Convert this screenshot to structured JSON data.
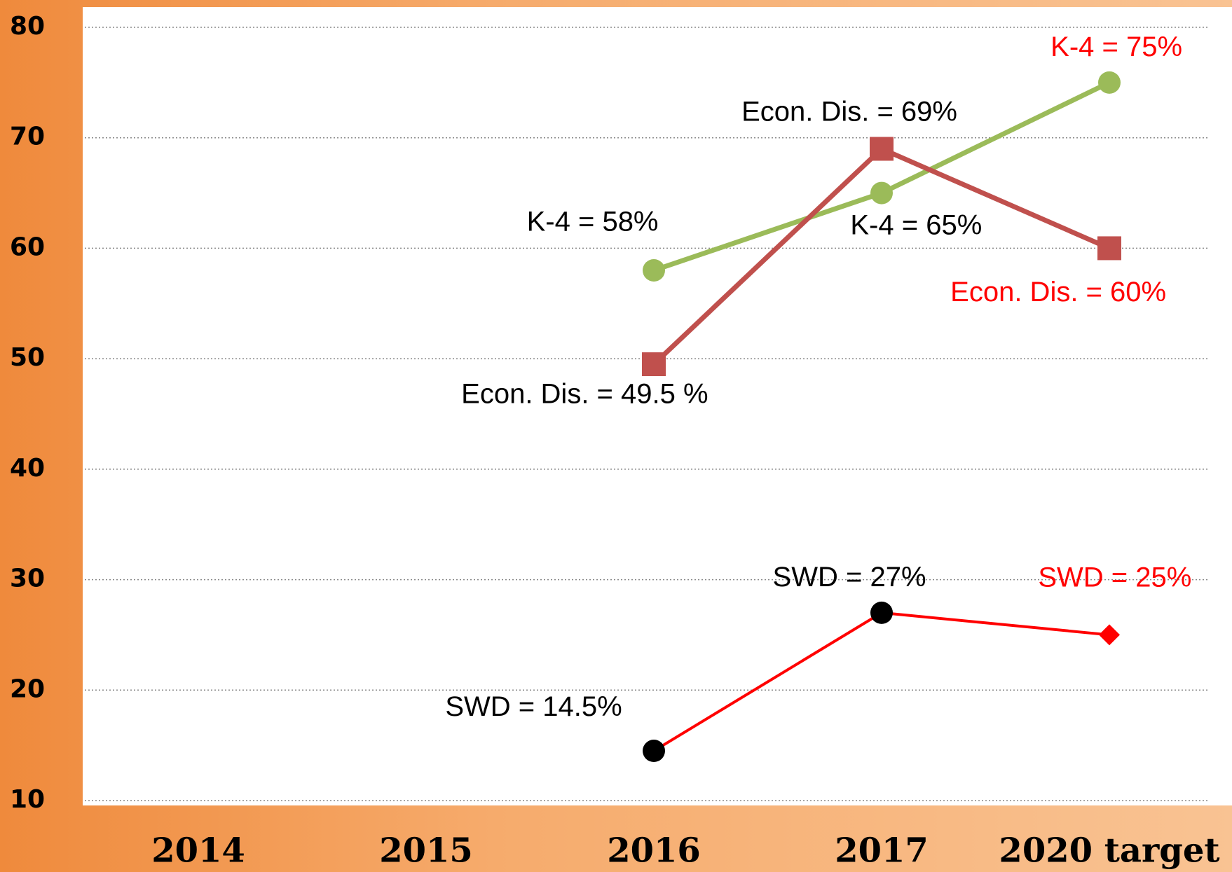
{
  "chart_data": {
    "type": "line",
    "categories": [
      "2014",
      "2015",
      "2016",
      "2017",
      "2020 target"
    ],
    "ylim": [
      10,
      80
    ],
    "yticks": [
      10,
      20,
      30,
      40,
      50,
      60,
      70,
      80
    ],
    "grid": true,
    "series": [
      {
        "color": "#9bbb59",
        "marker": "circle",
        "values": [
          null,
          null,
          58,
          65,
          75
        ],
        "value_labels": [
          null,
          null,
          "K-4 = 58%",
          "K-4 = 65%",
          "K-4 = 75%"
        ],
        "label_colors": [
          null,
          null,
          "#000000",
          "#000000",
          "#ff0000"
        ]
      },
      {
        "color": "#c0504d",
        "marker": "square",
        "values": [
          null,
          null,
          49.5,
          69,
          60
        ],
        "value_labels": [
          null,
          null,
          "Econ. Dis. = 49.5 %",
          "Econ. Dis. = 69%",
          "Econ. Dis. = 60%"
        ],
        "label_colors": [
          null,
          null,
          "#000000",
          "#000000",
          "#ff0000"
        ]
      },
      {
        "color": "#ff0000",
        "marker": "circle",
        "marker_colors": [
          null,
          null,
          "#000000",
          "#000000",
          "#ff0000"
        ],
        "target_marker": "diamond",
        "values": [
          null,
          null,
          14.5,
          27,
          25
        ],
        "value_labels": [
          null,
          null,
          "SWD =  14.5%",
          "SWD = 27%",
          "SWD = 25%"
        ],
        "label_colors": [
          null,
          null,
          "#000000",
          "#000000",
          "#ff0000"
        ]
      }
    ]
  }
}
